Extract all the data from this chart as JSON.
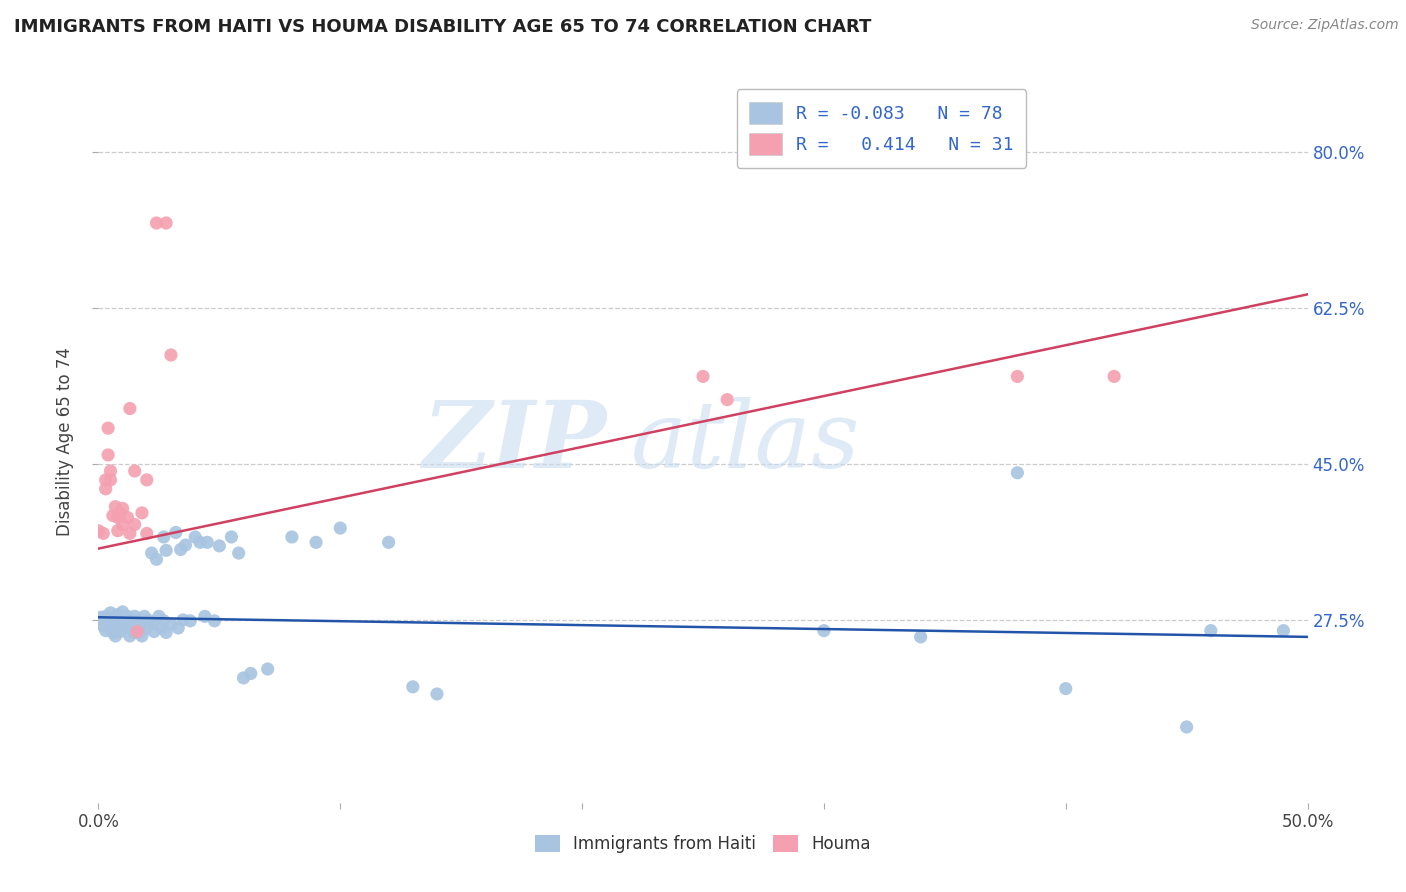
{
  "title": "IMMIGRANTS FROM HAITI VS HOUMA DISABILITY AGE 65 TO 74 CORRELATION CHART",
  "source": "Source: ZipAtlas.com",
  "ylabel": "Disability Age 65 to 74",
  "ytick_labels": [
    "80.0%",
    "62.5%",
    "45.0%",
    "27.5%"
  ],
  "ytick_values": [
    0.8,
    0.625,
    0.45,
    0.275
  ],
  "xlim": [
    0.0,
    0.5
  ],
  "ylim": [
    0.07,
    0.88
  ],
  "watermark_zip": "ZIP",
  "watermark_atlas": "atlas",
  "blue_color": "#A8C4E0",
  "pink_color": "#F4A0B0",
  "blue_line_color": "#2255AA",
  "pink_line_color": "#D04060",
  "blue_scatter": [
    [
      0.0,
      0.275
    ],
    [
      0.001,
      0.272
    ],
    [
      0.001,
      0.278
    ],
    [
      0.002,
      0.268
    ],
    [
      0.002,
      0.274
    ],
    [
      0.003,
      0.279
    ],
    [
      0.003,
      0.263
    ],
    [
      0.004,
      0.276
    ],
    [
      0.004,
      0.271
    ],
    [
      0.005,
      0.266
    ],
    [
      0.005,
      0.283
    ],
    [
      0.006,
      0.271
    ],
    [
      0.006,
      0.261
    ],
    [
      0.007,
      0.274
    ],
    [
      0.007,
      0.257
    ],
    [
      0.008,
      0.281
    ],
    [
      0.008,
      0.266
    ],
    [
      0.009,
      0.271
    ],
    [
      0.009,
      0.262
    ],
    [
      0.01,
      0.276
    ],
    [
      0.01,
      0.284
    ],
    [
      0.011,
      0.271
    ],
    [
      0.012,
      0.279
    ],
    [
      0.012,
      0.266
    ],
    [
      0.013,
      0.275
    ],
    [
      0.013,
      0.257
    ],
    [
      0.014,
      0.271
    ],
    [
      0.015,
      0.261
    ],
    [
      0.015,
      0.279
    ],
    [
      0.016,
      0.266
    ],
    [
      0.016,
      0.274
    ],
    [
      0.017,
      0.261
    ],
    [
      0.018,
      0.257
    ],
    [
      0.018,
      0.27
    ],
    [
      0.019,
      0.279
    ],
    [
      0.02,
      0.266
    ],
    [
      0.021,
      0.274
    ],
    [
      0.022,
      0.35
    ],
    [
      0.022,
      0.271
    ],
    [
      0.023,
      0.262
    ],
    [
      0.024,
      0.343
    ],
    [
      0.025,
      0.279
    ],
    [
      0.026,
      0.266
    ],
    [
      0.027,
      0.368
    ],
    [
      0.027,
      0.274
    ],
    [
      0.028,
      0.261
    ],
    [
      0.028,
      0.353
    ],
    [
      0.03,
      0.27
    ],
    [
      0.032,
      0.373
    ],
    [
      0.033,
      0.266
    ],
    [
      0.034,
      0.354
    ],
    [
      0.035,
      0.275
    ],
    [
      0.036,
      0.359
    ],
    [
      0.038,
      0.274
    ],
    [
      0.04,
      0.368
    ],
    [
      0.042,
      0.362
    ],
    [
      0.044,
      0.279
    ],
    [
      0.045,
      0.362
    ],
    [
      0.048,
      0.274
    ],
    [
      0.05,
      0.358
    ],
    [
      0.055,
      0.368
    ],
    [
      0.058,
      0.35
    ],
    [
      0.06,
      0.21
    ],
    [
      0.063,
      0.215
    ],
    [
      0.07,
      0.22
    ],
    [
      0.08,
      0.368
    ],
    [
      0.09,
      0.362
    ],
    [
      0.1,
      0.378
    ],
    [
      0.12,
      0.362
    ],
    [
      0.13,
      0.2
    ],
    [
      0.14,
      0.192
    ],
    [
      0.3,
      0.263
    ],
    [
      0.34,
      0.256
    ],
    [
      0.38,
      0.44
    ],
    [
      0.4,
      0.198
    ],
    [
      0.45,
      0.155
    ],
    [
      0.46,
      0.263
    ],
    [
      0.49,
      0.263
    ]
  ],
  "pink_scatter": [
    [
      0.0,
      0.375
    ],
    [
      0.002,
      0.372
    ],
    [
      0.003,
      0.432
    ],
    [
      0.003,
      0.422
    ],
    [
      0.004,
      0.46
    ],
    [
      0.004,
      0.49
    ],
    [
      0.005,
      0.432
    ],
    [
      0.005,
      0.442
    ],
    [
      0.006,
      0.392
    ],
    [
      0.007,
      0.402
    ],
    [
      0.008,
      0.375
    ],
    [
      0.008,
      0.39
    ],
    [
      0.009,
      0.395
    ],
    [
      0.01,
      0.382
    ],
    [
      0.01,
      0.4
    ],
    [
      0.012,
      0.39
    ],
    [
      0.013,
      0.372
    ],
    [
      0.013,
      0.512
    ],
    [
      0.015,
      0.442
    ],
    [
      0.015,
      0.382
    ],
    [
      0.016,
      0.262
    ],
    [
      0.018,
      0.395
    ],
    [
      0.02,
      0.372
    ],
    [
      0.02,
      0.432
    ],
    [
      0.024,
      0.72
    ],
    [
      0.028,
      0.72
    ],
    [
      0.03,
      0.572
    ],
    [
      0.25,
      0.548
    ],
    [
      0.26,
      0.522
    ],
    [
      0.38,
      0.548
    ],
    [
      0.42,
      0.548
    ]
  ],
  "blue_line_x": [
    0.0,
    0.5
  ],
  "blue_line_y": [
    0.278,
    0.256
  ],
  "pink_line_x": [
    0.0,
    0.5
  ],
  "pink_line_y": [
    0.355,
    0.64
  ]
}
